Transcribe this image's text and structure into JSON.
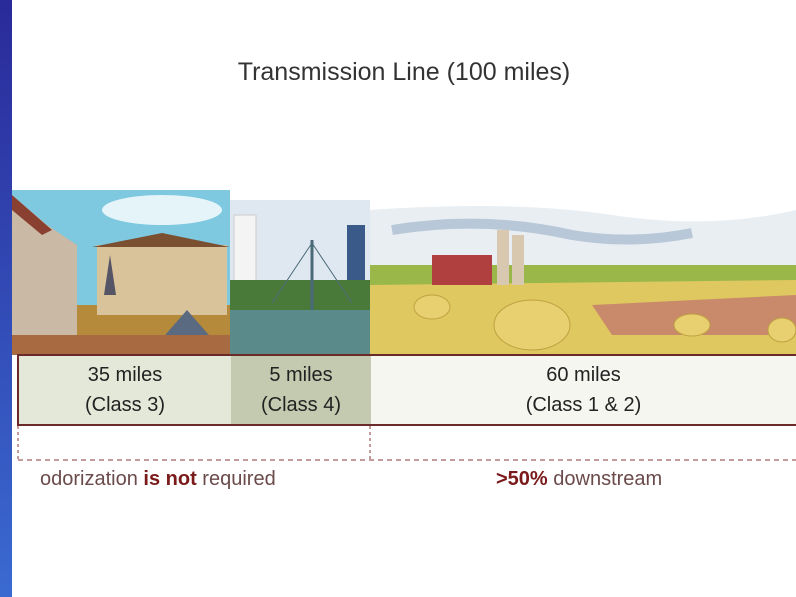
{
  "title": "Transmission Line (100 miles)",
  "segments": [
    {
      "length": "35 miles",
      "class": "(Class 3)"
    },
    {
      "length": "5 miles",
      "class": "(Class 4)"
    },
    {
      "length": "60 miles",
      "class": "(Class 1 & 2)"
    }
  ],
  "notes": {
    "left": {
      "before": "odorization ",
      "bold": "is not",
      "after": " required"
    },
    "right": {
      "bold": ">50%",
      "after": " downstream"
    }
  }
}
